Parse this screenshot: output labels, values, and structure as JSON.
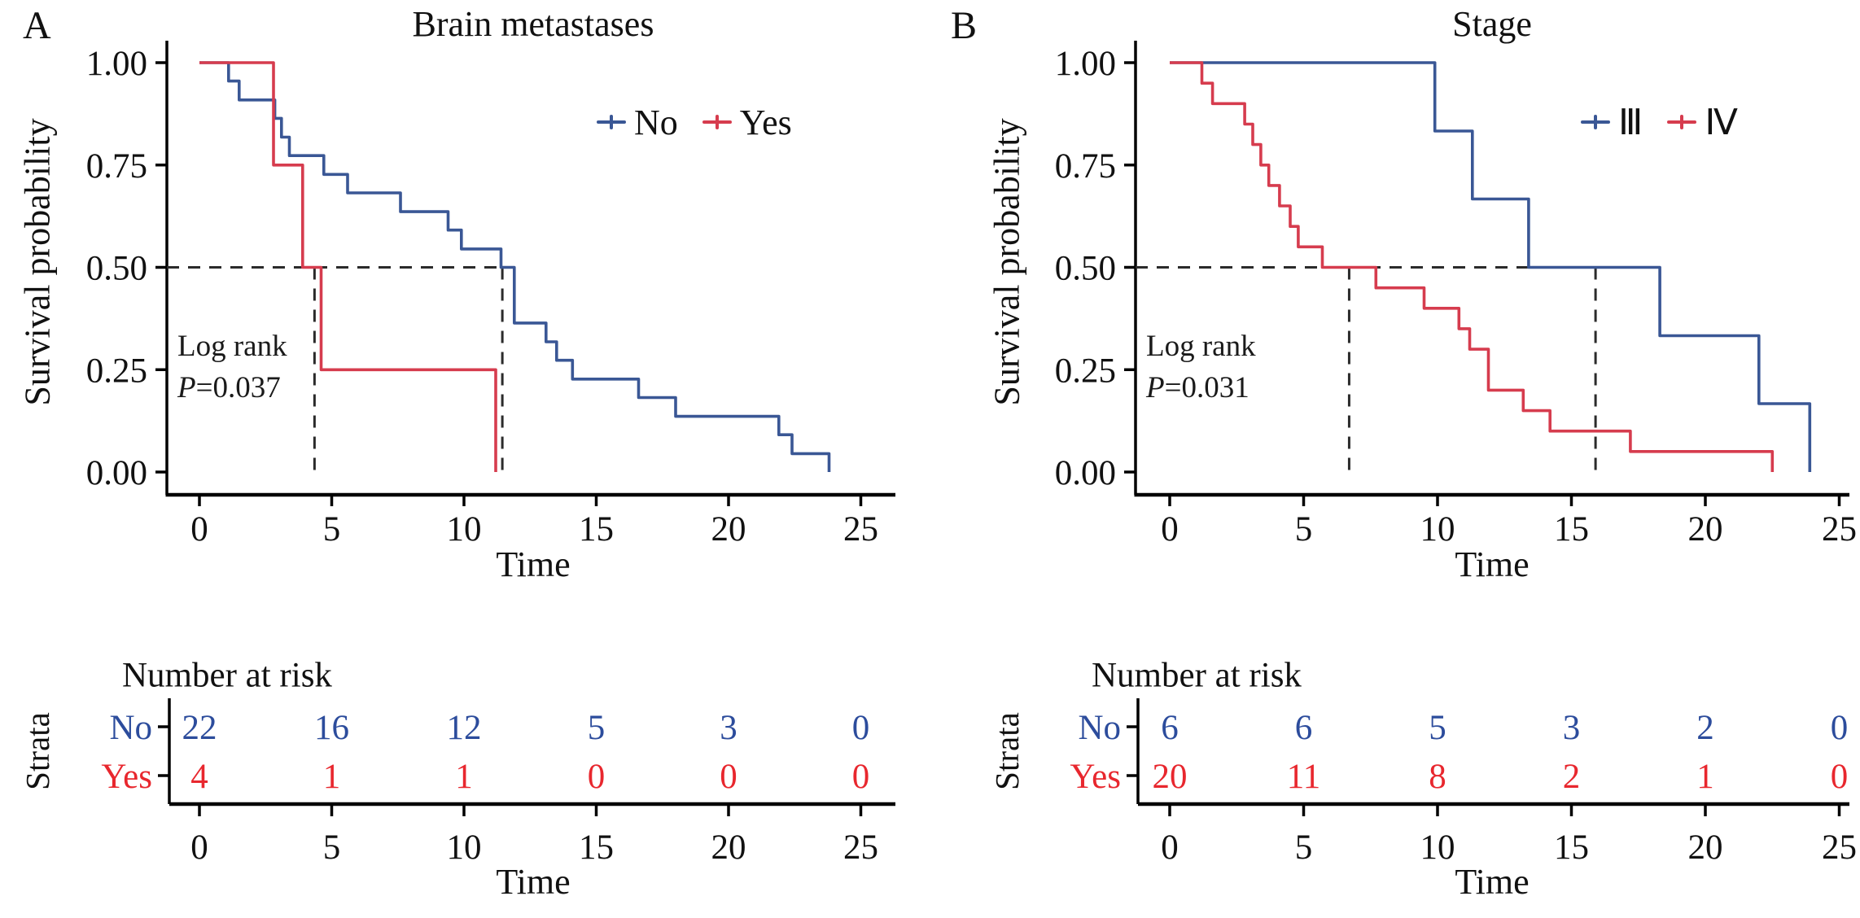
{
  "colors": {
    "curve_blue": "#3A5795",
    "curve_red": "#D63C4E",
    "table_blue": "#2C4C9C",
    "table_red": "#E8272E",
    "dashed": "#2b2b2b",
    "axis": "#000000",
    "text": "#111111"
  },
  "panels": [
    {
      "panel_label": "A",
      "title": "Brain metastases",
      "y_axis_label": "Survival probability",
      "x_axis_label": "Time",
      "legend": [
        {
          "label": "No",
          "color": "#3A5795"
        },
        {
          "label": "Yes",
          "color": "#D63C4E"
        }
      ],
      "annotation": {
        "line1": "Log rank",
        "p_label": "P",
        "p_value": "=0.037"
      },
      "risk_table": {
        "title": "Number at risk",
        "axis_label": "Strata",
        "x_axis_label": "Time",
        "times": [
          "0",
          "5",
          "10",
          "15",
          "20",
          "25"
        ],
        "rows": [
          {
            "label": "No",
            "color": "#2C4C9C",
            "values": [
              "22",
              "16",
              "12",
              "5",
              "3",
              "0"
            ]
          },
          {
            "label": "Yes",
            "color": "#E8272E",
            "values": [
              "4",
              "1",
              "1",
              "0",
              "0",
              "0"
            ]
          }
        ]
      }
    },
    {
      "panel_label": "B",
      "title": "Stage",
      "y_axis_label": "Survival probability",
      "x_axis_label": "Time",
      "legend": [
        {
          "label": "Ⅲ",
          "color": "#3A5795"
        },
        {
          "label": "Ⅳ",
          "color": "#D63C4E"
        }
      ],
      "annotation": {
        "line1": "Log rank",
        "p_label": "P",
        "p_value": "=0.031"
      },
      "risk_table": {
        "title": "Number at risk",
        "axis_label": "Strata",
        "x_axis_label": "Time",
        "times": [
          "0",
          "5",
          "10",
          "15",
          "20",
          "25"
        ],
        "rows": [
          {
            "label": "No",
            "color": "#2C4C9C",
            "values": [
              "6",
              "6",
              "5",
              "3",
              "2",
              "0"
            ]
          },
          {
            "label": "Yes",
            "color": "#E8272E",
            "values": [
              "20",
              "11",
              "8",
              "2",
              "1",
              "0"
            ]
          }
        ]
      }
    }
  ],
  "chart_data": [
    {
      "type": "line",
      "subtype": "kaplan-meier-step",
      "title": "Brain metastases",
      "xlabel": "Time",
      "ylabel": "Survival probability",
      "xlim": [
        0,
        25
      ],
      "ylim": [
        0,
        1
      ],
      "x_ticks": [
        0,
        5,
        10,
        15,
        20,
        25
      ],
      "y_ticks": [
        1.0,
        0.75,
        0.5,
        0.25,
        0.0
      ],
      "y_tick_labels": [
        "1.00",
        "0.75",
        "0.50",
        "0.25",
        "0.00"
      ],
      "grid": false,
      "legend_position": "upper right inside",
      "log_rank_p": 0.037,
      "median_survival_times": [
        4.35,
        11.45
      ],
      "series": [
        {
          "name": "No",
          "color": "#3A5795",
          "points": [
            [
              0,
              1.0
            ],
            [
              1.1,
              0.955
            ],
            [
              1.5,
              0.909
            ],
            [
              2.85,
              0.864
            ],
            [
              3.1,
              0.818
            ],
            [
              3.4,
              0.773
            ],
            [
              4.7,
              0.727
            ],
            [
              5.6,
              0.682
            ],
            [
              7.6,
              0.636
            ],
            [
              9.4,
              0.591
            ],
            [
              9.9,
              0.545
            ],
            [
              11.4,
              0.5
            ],
            [
              11.9,
              0.364
            ],
            [
              13.1,
              0.318
            ],
            [
              13.5,
              0.273
            ],
            [
              14.1,
              0.227
            ],
            [
              16.6,
              0.182
            ],
            [
              18.0,
              0.136
            ],
            [
              21.9,
              0.091
            ],
            [
              22.4,
              0.045
            ],
            [
              23.8,
              0.0
            ]
          ]
        },
        {
          "name": "Yes",
          "color": "#D63C4E",
          "points": [
            [
              0,
              1.0
            ],
            [
              2.8,
              0.75
            ],
            [
              3.9,
              0.5
            ],
            [
              4.6,
              0.25
            ],
            [
              11.2,
              0.0
            ]
          ]
        }
      ],
      "number_at_risk": {
        "times": [
          0,
          5,
          10,
          15,
          20,
          25
        ],
        "No": [
          22,
          16,
          12,
          5,
          3,
          0
        ],
        "Yes": [
          4,
          1,
          1,
          0,
          0,
          0
        ]
      }
    },
    {
      "type": "line",
      "subtype": "kaplan-meier-step",
      "title": "Stage",
      "xlabel": "Time",
      "ylabel": "Survival probability",
      "xlim": [
        0,
        25
      ],
      "ylim": [
        0,
        1
      ],
      "x_ticks": [
        0,
        5,
        10,
        15,
        20,
        25
      ],
      "y_ticks": [
        1.0,
        0.75,
        0.5,
        0.25,
        0.0
      ],
      "y_tick_labels": [
        "1.00",
        "0.75",
        "0.50",
        "0.25",
        "0.00"
      ],
      "grid": false,
      "legend_position": "upper right inside",
      "log_rank_p": 0.031,
      "median_survival_times": [
        6.7,
        15.9
      ],
      "series": [
        {
          "name": "Ⅲ",
          "color": "#3A5795",
          "points": [
            [
              0,
              1.0
            ],
            [
              9.9,
              0.833
            ],
            [
              11.3,
              0.667
            ],
            [
              13.4,
              0.5
            ],
            [
              18.3,
              0.333
            ],
            [
              22.0,
              0.167
            ],
            [
              23.9,
              0.0
            ]
          ]
        },
        {
          "name": "Ⅳ",
          "color": "#D63C4E",
          "points": [
            [
              0,
              1.0
            ],
            [
              1.2,
              0.95
            ],
            [
              1.6,
              0.9
            ],
            [
              2.8,
              0.85
            ],
            [
              3.1,
              0.8
            ],
            [
              3.4,
              0.75
            ],
            [
              3.7,
              0.7
            ],
            [
              4.1,
              0.65
            ],
            [
              4.5,
              0.6
            ],
            [
              4.8,
              0.55
            ],
            [
              5.7,
              0.5
            ],
            [
              7.7,
              0.45
            ],
            [
              9.5,
              0.4
            ],
            [
              10.8,
              0.35
            ],
            [
              11.2,
              0.3
            ],
            [
              11.9,
              0.2
            ],
            [
              13.2,
              0.15
            ],
            [
              14.2,
              0.1
            ],
            [
              17.2,
              0.05
            ],
            [
              22.5,
              0.0
            ]
          ]
        }
      ],
      "number_at_risk": {
        "times": [
          0,
          5,
          10,
          15,
          20,
          25
        ],
        "No": [
          6,
          6,
          5,
          3,
          2,
          0
        ],
        "Yes": [
          20,
          11,
          8,
          2,
          1,
          0
        ]
      }
    }
  ]
}
